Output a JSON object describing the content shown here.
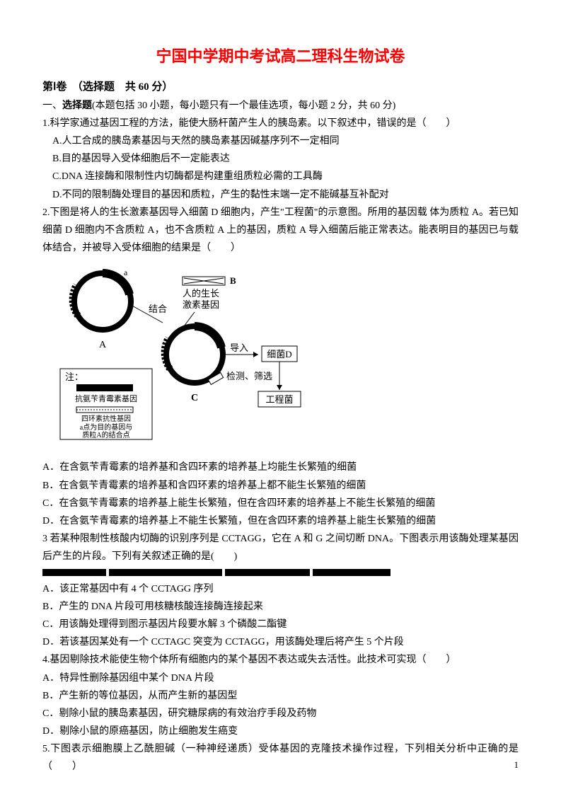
{
  "title": "宁国中学期中考试高二理科生物试卷",
  "section1_header": "第Ⅰ卷　（选择题　共 60 分）",
  "mc_intro": "一、选择题(本题包括 30 小题，每小题只有一个最佳选项，每小题 2 分，共 60 分)",
  "q1": {
    "stem": "1.科学家通过基因工程的方法，能使大肠杆菌产生人的胰岛素。以下叙述中，错误的是（　　）",
    "A": "A.人工合成的胰岛素基因与天然的胰岛素基因碱基序列不一定相同",
    "B": "B.目的基因导入受体细胞后不一定能表达",
    "C": "C.DNA 连接酶和限制性内切酶都是构建重组质粒必需的工具酶",
    "D": "D.不同的限制酶处理目的基因和质粒，产生的黏性末端一定不能碱基互补配对"
  },
  "q2": {
    "stem": "2.下图是将人的生长激素基因导入细菌 D 细胞内，产生\"工程菌\"的示意图。所用的基因载 体为质粒 A。若已知细菌 D 细胞内不含质粒 A，也不含质粒 A 上的基因，质粒 A 导入细菌后能正常表达。能表明目的基因已与载体结合，并被导入受体细胞的结果是（　　）",
    "diagram": {
      "labels": {
        "top_right": "B",
        "gene_label": "人的生长\n激素基因",
        "combine": "结合",
        "A_label": "A",
        "insert": "导入",
        "bacteria_D": "细菌D",
        "detect": "检测、筛选",
        "C_label": "C",
        "engineered": "工程菌",
        "note_title": "注：",
        "note1": "抗氨苄青霉素基因",
        "note2": "四环素抗性基因\na点为目的基因与\n质粒A的结合点"
      },
      "colors": {
        "stroke": "#000000",
        "fill_hatched": "#000000",
        "fill_white": "#ffffff"
      }
    },
    "A": "A．在含氨苄青霉素的培养基和含四环素的培养基上均能生长繁殖的细菌",
    "B": "B．在含氨苄青霉素的培养基和含四环素的培养基上都不能生长繁殖的细菌",
    "C": "C．在含氨苄青霉素的培养基上能生长繁殖，但在含四环素的培养基上不能生长繁殖的细菌",
    "D": "D．在含氨苄青霉素的培养基上不能生长繁殖，但在含四环素的培养基上能生长繁殖的细菌"
  },
  "q3": {
    "stem": "3 若某种限制性核酸内切酶的识别序列是 CCTAGG，它在 A 和 G 之间切断 DNA。下图表示用该酶处理某基因后产生的片段。下列有关叙述正确的是(　　)",
    "bars": {
      "count": 4,
      "widths": [
        90,
        160,
        120,
        110
      ],
      "color": "#000000",
      "height": 10
    },
    "A": "A．该正常基因中有 4 个 CCTAGG 序列",
    "B": "B．产生的 DNA 片段可用核糖核酸连接酶连接起来",
    "C": "C．用该酶处理得到图示基因片段要水解 3 个磷酸二酯键",
    "D": "D．若该基因某处有一个 CCTAGC 突变为 CCTAGG，用该酶处理后将产生 5 个片段"
  },
  "q4": {
    "stem": "4.基因剔除技术能使生物个体所有细胞内的某个基因不表达或失去活性。此技术可实现（　　）",
    "A": "A．特异性删除基因组中某个 DNA 片段",
    "B": "B．产生新的等位基因，从而产生新的基因型",
    "C": "C．剔除小鼠的胰岛素基因，研究糖尿病的有效治疗手段及药物",
    "D": "D．剔除小鼠的原癌基因，防止细胞发生癌变"
  },
  "q5": {
    "stem": "5.下图表示细胞膜上乙酰胆碱（一种神经递质）受体基因的克隆技术操作过程，下列相关分析中正确的是（　　）"
  },
  "page_number": "1"
}
